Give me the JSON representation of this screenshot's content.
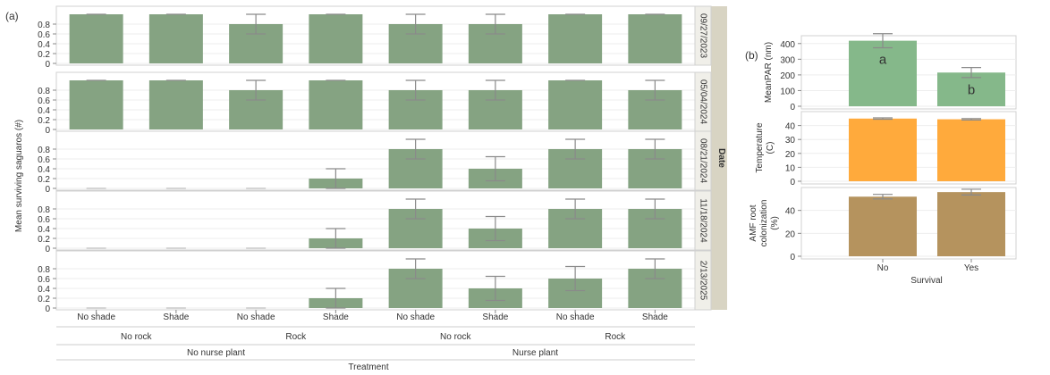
{
  "panel_a_label": "(a)",
  "panel_b_label": "(b)",
  "chart_data": [
    {
      "type": "bar",
      "panel": "(a)",
      "ylabel": "Mean surviving saguaros (#)",
      "xlabel": "Treatment",
      "facet_title": "Date",
      "ylim": [
        0,
        1
      ],
      "yticks": [
        0,
        0.2,
        0.4,
        0.6,
        0.8
      ],
      "ytick_labels": [
        "0",
        "0.2",
        "0.4",
        "0.6",
        "0.8"
      ],
      "categories": [
        "No shade",
        "Shade",
        "No shade",
        "Shade",
        "No shade",
        "Shade",
        "No shade",
        "Shade"
      ],
      "rock_groups": [
        {
          "label": "No rock",
          "span": [
            0,
            1
          ]
        },
        {
          "label": "Rock",
          "span": [
            2,
            3
          ]
        },
        {
          "label": "No rock",
          "span": [
            4,
            5
          ]
        },
        {
          "label": "Rock",
          "span": [
            6,
            7
          ]
        }
      ],
      "nurse_groups": [
        {
          "label": "No nurse plant",
          "span": [
            0,
            3
          ]
        },
        {
          "label": "Nurse plant",
          "span": [
            4,
            7
          ]
        }
      ],
      "bar_color": "#85A382",
      "facets": [
        {
          "date": "09/27/2023",
          "values": [
            1,
            1,
            0.8,
            1,
            0.8,
            0.8,
            1,
            1
          ],
          "err": [
            0,
            0,
            0.2,
            0,
            0.2,
            0.2,
            0,
            0
          ]
        },
        {
          "date": "05/04/2024",
          "values": [
            1,
            1,
            0.8,
            1,
            0.8,
            0.8,
            1,
            0.8
          ],
          "err": [
            0,
            0,
            0.2,
            0,
            0.2,
            0.2,
            0,
            0.2
          ]
        },
        {
          "date": "08/21/2024",
          "values": [
            0,
            0,
            0,
            0.2,
            0.8,
            0.4,
            0.8,
            0.8
          ],
          "err": [
            0,
            0,
            0,
            0.2,
            0.2,
            0.245,
            0.2,
            0.2
          ]
        },
        {
          "date": "11/18/2024",
          "values": [
            0,
            0,
            0,
            0.2,
            0.8,
            0.4,
            0.8,
            0.8
          ],
          "err": [
            0,
            0,
            0,
            0.2,
            0.2,
            0.245,
            0.2,
            0.2
          ]
        },
        {
          "date": "2/13/2025",
          "values": [
            0,
            0,
            0,
            0.2,
            0.8,
            0.4,
            0.6,
            0.8
          ],
          "err": [
            0,
            0,
            0,
            0.2,
            0.2,
            0.245,
            0.245,
            0.2
          ]
        }
      ]
    },
    {
      "type": "bar",
      "panel": "(b)",
      "xlabel": "Survival",
      "categories": [
        "No",
        "Yes"
      ],
      "subplots": [
        {
          "ylabel": "MeanPAR (nm)",
          "ylim": [
            0,
            450
          ],
          "yticks": [
            0,
            100,
            200,
            300,
            400
          ],
          "values": [
            418,
            215
          ],
          "err": [
            45,
            32
          ],
          "letters": [
            "a",
            "b"
          ],
          "color": "#85B88A"
        },
        {
          "ylabel": "Temperature (C)",
          "ylim": [
            0,
            50
          ],
          "yticks": [
            0,
            10,
            20,
            30,
            40
          ],
          "values": [
            45,
            44.5
          ],
          "err": [
            0.5,
            0.5
          ],
          "color": "#FFAA3C"
        },
        {
          "ylabel": "AMF root colonization (%)",
          "ylim": [
            0,
            60
          ],
          "yticks": [
            0,
            20,
            40
          ],
          "values": [
            52,
            56
          ],
          "err": [
            2,
            2.5
          ],
          "color": "#B5935E"
        }
      ]
    }
  ]
}
